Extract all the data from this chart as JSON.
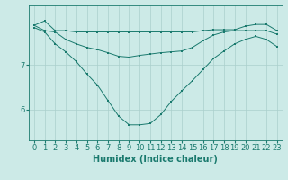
{
  "x": [
    0,
    1,
    2,
    3,
    4,
    5,
    6,
    7,
    8,
    9,
    10,
    11,
    12,
    13,
    14,
    15,
    16,
    17,
    18,
    19,
    20,
    21,
    22,
    23
  ],
  "line_upper": [
    7.9,
    8.0,
    7.78,
    7.78,
    7.75,
    7.75,
    7.75,
    7.75,
    7.75,
    7.75,
    7.75,
    7.75,
    7.75,
    7.75,
    7.75,
    7.75,
    7.78,
    7.8,
    7.8,
    7.8,
    7.88,
    7.92,
    7.92,
    7.78
  ],
  "line_mid": [
    7.9,
    7.78,
    7.75,
    7.58,
    7.48,
    7.4,
    7.35,
    7.28,
    7.2,
    7.18,
    7.22,
    7.25,
    7.28,
    7.3,
    7.32,
    7.4,
    7.55,
    7.68,
    7.75,
    7.78,
    7.78,
    7.78,
    7.78,
    7.7
  ],
  "line_lower": [
    7.85,
    7.75,
    7.48,
    7.3,
    7.08,
    6.8,
    6.55,
    6.2,
    5.85,
    5.65,
    5.65,
    5.68,
    5.88,
    6.18,
    6.42,
    6.65,
    6.9,
    7.15,
    7.32,
    7.48,
    7.58,
    7.65,
    7.58,
    7.42
  ],
  "line_color": "#1a7a6e",
  "bg_color": "#cceae7",
  "grid_color": "#aacfcc",
  "xlabel": "Humidex (Indice chaleur)",
  "xlabel_fontsize": 7,
  "tick_fontsize": 6,
  "ylim": [
    5.3,
    8.35
  ],
  "xlim": [
    -0.5,
    23.5
  ],
  "yticks": [
    6,
    7
  ],
  "xticks": [
    0,
    1,
    2,
    3,
    4,
    5,
    6,
    7,
    8,
    9,
    10,
    11,
    12,
    13,
    14,
    15,
    16,
    17,
    18,
    19,
    20,
    21,
    22,
    23
  ]
}
